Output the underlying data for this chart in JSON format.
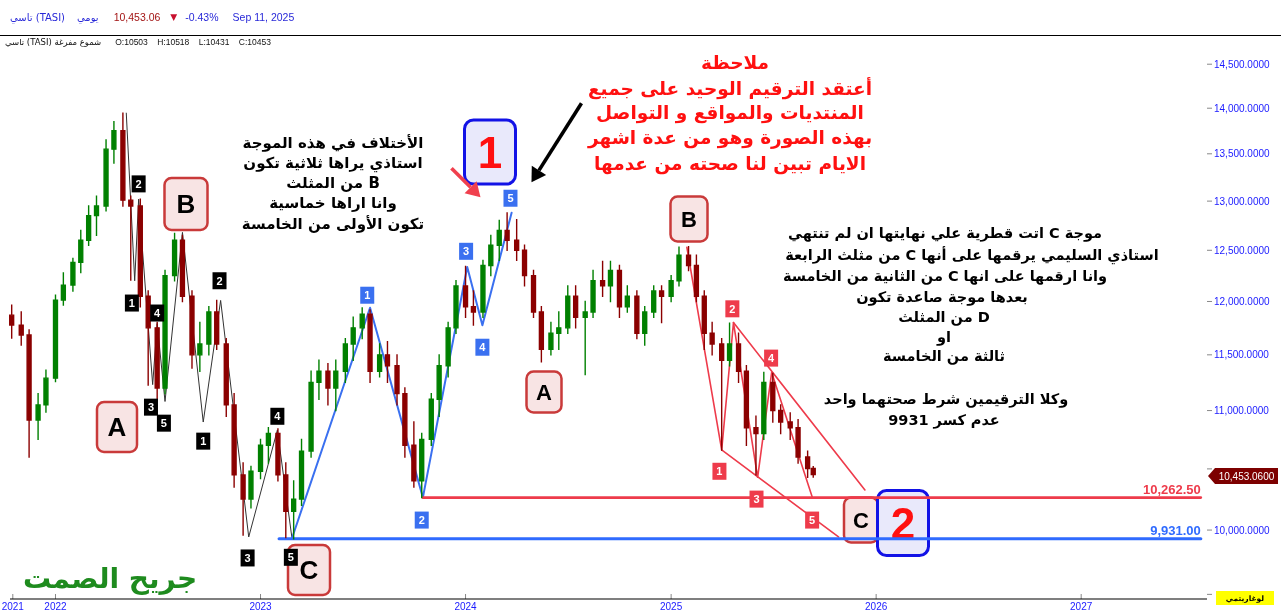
{
  "chart_data": {
    "type": "candlestick",
    "title": "تاسي (TASI)",
    "subtitle": "يومي",
    "x": [
      "2021-10-15",
      "2021-11-01",
      "2021-11-15",
      "2021-12-01",
      "2021-12-15",
      "2022-01-01",
      "2022-01-15",
      "2022-02-01",
      "2022-02-15",
      "2022-03-01",
      "2022-03-15",
      "2022-04-01",
      "2022-04-15",
      "2022-05-01",
      "2022-05-15",
      "2022-06-01",
      "2022-06-15",
      "2022-07-01",
      "2022-07-15",
      "2022-08-01",
      "2022-08-15",
      "2022-09-01",
      "2022-09-15",
      "2022-10-01",
      "2022-10-15",
      "2022-11-01",
      "2022-11-15",
      "2022-12-01",
      "2022-12-15",
      "2023-01-01",
      "2023-01-15",
      "2023-02-01",
      "2023-02-15",
      "2023-03-01",
      "2023-03-15",
      "2023-04-01",
      "2023-04-15",
      "2023-05-01",
      "2023-05-15",
      "2023-06-01",
      "2023-06-15",
      "2023-07-01",
      "2023-07-15",
      "2023-08-01",
      "2023-08-15",
      "2023-09-01",
      "2023-09-15",
      "2023-10-01",
      "2023-10-15",
      "2023-11-01",
      "2023-11-15",
      "2023-12-01",
      "2023-12-15",
      "2024-01-01",
      "2024-01-15",
      "2024-02-01",
      "2024-02-15",
      "2024-03-01",
      "2024-03-15",
      "2024-04-01",
      "2024-04-15",
      "2024-05-01",
      "2024-05-15",
      "2024-06-01",
      "2024-06-15",
      "2024-07-01",
      "2024-07-15",
      "2024-08-01",
      "2024-08-15",
      "2024-09-01",
      "2024-09-15",
      "2024-10-01",
      "2024-10-15",
      "2024-11-01",
      "2024-11-15",
      "2024-12-01",
      "2024-12-15",
      "2025-01-01",
      "2025-01-15",
      "2025-02-01",
      "2025-02-15",
      "2025-03-01",
      "2025-03-15",
      "2025-04-01",
      "2025-04-15",
      "2025-05-01",
      "2025-05-15",
      "2025-06-01",
      "2025-06-15",
      "2025-07-01",
      "2025-07-15",
      "2025-08-01",
      "2025-08-15",
      "2025-09-01",
      "2025-09-11"
    ],
    "ohlc": [
      [
        11870,
        11965,
        11655,
        11776
      ],
      [
        11776,
        11900,
        11590,
        11684
      ],
      [
        11684,
        11730,
        10600,
        10917
      ],
      [
        10917,
        11150,
        10750,
        11050
      ],
      [
        11050,
        11360,
        10987,
        11288
      ],
      [
        11288,
        12060,
        11257,
        12013
      ],
      [
        12013,
        12275,
        11965,
        12158
      ],
      [
        12158,
        12420,
        12100,
        12380
      ],
      [
        12380,
        12700,
        12280,
        12600
      ],
      [
        12600,
        12950,
        12550,
        12850
      ],
      [
        12850,
        13050,
        12650,
        12950
      ],
      [
        12950,
        13650,
        12900,
        13550
      ],
      [
        13550,
        13850,
        13400,
        13750
      ],
      [
        13750,
        13945,
        12950,
        13010
      ],
      [
        13010,
        13050,
        12207,
        12950
      ],
      [
        12950,
        13020,
        11950,
        12050
      ],
      [
        12050,
        12100,
        11226,
        11750
      ],
      [
        11750,
        11800,
        11090,
        11200
      ],
      [
        11200,
        12300,
        11150,
        12250
      ],
      [
        12250,
        12670,
        12200,
        12600
      ],
      [
        12600,
        12650,
        12000,
        12050
      ],
      [
        12050,
        12100,
        11380,
        11500
      ],
      [
        11500,
        11800,
        11350,
        11600
      ],
      [
        11600,
        11950,
        11500,
        11900
      ],
      [
        11900,
        12010,
        11550,
        11600
      ],
      [
        11600,
        11650,
        10950,
        11050
      ],
      [
        11050,
        11150,
        10350,
        10450
      ],
      [
        10450,
        10550,
        9960,
        10250
      ],
      [
        10250,
        10520,
        10180,
        10480
      ],
      [
        10480,
        10750,
        10420,
        10700
      ],
      [
        10700,
        10850,
        10550,
        10800
      ],
      [
        10800,
        10840,
        10400,
        10450
      ],
      [
        10450,
        10550,
        9940,
        10150
      ],
      [
        10150,
        10400,
        9931,
        10250
      ],
      [
        10250,
        10750,
        10200,
        10650
      ],
      [
        10650,
        11350,
        10600,
        11250
      ],
      [
        11250,
        11450,
        11100,
        11350
      ],
      [
        11350,
        11420,
        11050,
        11200
      ],
      [
        11200,
        11450,
        11000,
        11350
      ],
      [
        11350,
        11650,
        11250,
        11600
      ],
      [
        11600,
        11850,
        11450,
        11750
      ],
      [
        11750,
        11938,
        11650,
        11880
      ],
      [
        11880,
        11920,
        11250,
        11350
      ],
      [
        11350,
        11600,
        11300,
        11500
      ],
      [
        11500,
        11620,
        11250,
        11400
      ],
      [
        11400,
        11500,
        11050,
        11150
      ],
      [
        11150,
        11200,
        10600,
        10700
      ],
      [
        10700,
        10900,
        10350,
        10400
      ],
      [
        10400,
        10800,
        10262.5,
        10750
      ],
      [
        10750,
        11150,
        10700,
        11100
      ],
      [
        11100,
        11500,
        10950,
        11400
      ],
      [
        11400,
        11800,
        11300,
        11750
      ],
      [
        11750,
        12200,
        11700,
        12150
      ],
      [
        12150,
        12341,
        11850,
        11950
      ],
      [
        11950,
        12100,
        11776,
        11900
      ],
      [
        11900,
        12400,
        11850,
        12350
      ],
      [
        12350,
        12650,
        12250,
        12550
      ],
      [
        12550,
        12800,
        12400,
        12700
      ],
      [
        12700,
        12879,
        12500,
        12600
      ],
      [
        12600,
        12810,
        12400,
        12500
      ],
      [
        12500,
        12550,
        12150,
        12250
      ],
      [
        12250,
        12300,
        11850,
        11900
      ],
      [
        11900,
        11950,
        11436,
        11550
      ],
      [
        11550,
        11800,
        11500,
        11700
      ],
      [
        11700,
        11900,
        11550,
        11750
      ],
      [
        11750,
        12150,
        11700,
        12050
      ],
      [
        12050,
        12150,
        11750,
        11850
      ],
      [
        11850,
        12000,
        11320,
        11900
      ],
      [
        11900,
        12300,
        11850,
        12200
      ],
      [
        12200,
        12390,
        12050,
        12150
      ],
      [
        12150,
        12390,
        12000,
        12300
      ],
      [
        12300,
        12350,
        11850,
        11950
      ],
      [
        11950,
        12150,
        11900,
        12050
      ],
      [
        12050,
        12100,
        11650,
        11700
      ],
      [
        11700,
        11950,
        11590,
        11900
      ],
      [
        11900,
        12150,
        11850,
        12100
      ],
      [
        12100,
        12150,
        11800,
        12050
      ],
      [
        12050,
        12250,
        12000,
        12200
      ],
      [
        12200,
        12530,
        12150,
        12450
      ],
      [
        12450,
        12536,
        12300,
        12350
      ],
      [
        12350,
        12450,
        12000,
        12050
      ],
      [
        12050,
        12100,
        11550,
        11700
      ],
      [
        11700,
        11800,
        11500,
        11600
      ],
      [
        11600,
        11650,
        10658,
        11450
      ],
      [
        11450,
        11795,
        11400,
        11600
      ],
      [
        11600,
        11700,
        11250,
        11350
      ],
      [
        11350,
        11400,
        10700,
        10850
      ],
      [
        10850,
        10950,
        10450,
        10800
      ],
      [
        10800,
        11340,
        10750,
        11250
      ],
      [
        11250,
        11330,
        10900,
        11000
      ],
      [
        11000,
        11050,
        10800,
        10900
      ],
      [
        10900,
        10980,
        10750,
        10850
      ],
      [
        10850,
        10920,
        10550,
        10600
      ],
      [
        10600,
        10650,
        10430,
        10503
      ],
      [
        10503,
        10518,
        10431,
        10453
      ]
    ],
    "colors": [
      "#8b0000",
      "#8b0000",
      "#8b0000",
      "#008000",
      "#008000",
      "#008000",
      "#008000",
      "#008000",
      "#008000",
      "#008000",
      "#008000",
      "#008000",
      "#008000",
      "#8b0000",
      "#8b0000",
      "#8b0000",
      "#8b0000",
      "#8b0000",
      "#008000",
      "#008000",
      "#8b0000",
      "#8b0000",
      "#008000",
      "#008000",
      "#8b0000",
      "#8b0000",
      "#8b0000",
      "#8b0000",
      "#008000",
      "#008000",
      "#008000",
      "#8b0000",
      "#8b0000",
      "#008000",
      "#008000",
      "#008000",
      "#008000",
      "#8b0000",
      "#008000",
      "#008000",
      "#008000",
      "#008000",
      "#8b0000",
      "#008000",
      "#8b0000",
      "#8b0000",
      "#8b0000",
      "#8b0000",
      "#008000",
      "#008000",
      "#008000",
      "#008000",
      "#008000",
      "#8b0000",
      "#8b0000",
      "#008000",
      "#008000",
      "#008000",
      "#8b0000",
      "#8b0000",
      "#8b0000",
      "#8b0000",
      "#8b0000",
      "#008000",
      "#008000",
      "#008000",
      "#8b0000",
      "#008000",
      "#008000",
      "#8b0000",
      "#008000",
      "#8b0000",
      "#008000",
      "#8b0000",
      "#008000",
      "#008000",
      "#8b0000",
      "#008000",
      "#008000",
      "#8b0000",
      "#8b0000",
      "#8b0000",
      "#8b0000",
      "#8b0000",
      "#008000",
      "#8b0000",
      "#8b0000",
      "#8b0000",
      "#008000",
      "#8b0000",
      "#8b0000",
      "#8b0000",
      "#8b0000",
      "#8b0000",
      "#8b0000"
    ],
    "series": [
      {
        "type": "line",
        "x": [
          "2022-05-07",
          "2022-05-22",
          "2022-05-29",
          "2022-06-23",
          "2022-07-01",
          "2022-07-15",
          "2022-08-15",
          "2022-09-21",
          "2022-10-22",
          "2022-12-11",
          "2023-01-31",
          "2023-02-26"
        ],
        "values": [
          13945,
          12200,
          13020,
          11230,
          11790,
          11080,
          12680,
          10900,
          12010,
          9945,
          10830,
          9935
        ],
        "color": "#333333"
      },
      {
        "type": "line",
        "x": [
          "2023-02-26",
          "2023-07-15",
          "2023-10-17",
          "2024-01-04",
          "2024-01-31",
          "2024-03-23"
        ],
        "values": [
          9935,
          11940,
          10262.5,
          12335,
          11775,
          12880
        ],
        "color": "#3a70f0"
      },
      {
        "type": "line",
        "x": [
          "2025-01-29",
          "2025-04-01",
          "2025-04-22",
          "2025-06-04",
          "2025-06-29",
          "2025-09-09"
        ],
        "values": [
          12530,
          10660,
          11800,
          10430,
          11340,
          10270
        ],
        "color": "#ee3b4b"
      },
      {
        "type": "line",
        "x": [
          "2025-04-01",
          "2025-10-26"
        ],
        "values": [
          10660,
          9945
        ],
        "color": "#ee3b4b"
      },
      {
        "type": "line",
        "x": [
          "2025-04-22",
          "2025-12-12"
        ],
        "values": [
          11800,
          10325
        ],
        "color": "#ee3b4b"
      },
      {
        "type": "line",
        "x": [
          "2023-10-17",
          "2027-08-02"
        ],
        "values": [
          10262.5,
          10262.5
        ],
        "color": "#ee3b4b"
      },
      {
        "type": "line",
        "x": [
          "2023-02-03",
          "2027-08-02"
        ],
        "values": [
          9931,
          9931
        ],
        "color": "#2f6bff"
      }
    ],
    "xlim": [
      "2021-10-12",
      "2027-08-13"
    ],
    "xticks": [
      {
        "value": "2021-10-17",
        "label": "2021"
      },
      {
        "value": "2022-01-01",
        "label": "2022"
      },
      {
        "value": "2023-01-01",
        "label": "2023"
      },
      {
        "value": "2024-01-01",
        "label": "2024"
      },
      {
        "value": "2025-01-01",
        "label": "2025"
      },
      {
        "value": "2026-01-01",
        "label": "2026"
      },
      {
        "value": "2027-01-01",
        "label": "2027"
      }
    ],
    "ylim": [
      9465,
      14830
    ],
    "yticks": [
      {
        "value": 9500,
        "label": null
      },
      {
        "value": 10000,
        "label": "10,000.0000"
      },
      {
        "value": 10500,
        "label": null
      },
      {
        "value": 11000,
        "label": "11,000.0000"
      },
      {
        "value": 11500,
        "label": "11,500.0000"
      },
      {
        "value": 12000,
        "label": "12,000.0000"
      },
      {
        "value": 12500,
        "label": "12,500.0000"
      },
      {
        "value": 13000,
        "label": "13,000.0000"
      },
      {
        "value": 13500,
        "label": "13,500.0000"
      },
      {
        "value": 14000,
        "label": "14,000.0000"
      },
      {
        "value": 14500,
        "label": "14,500.0000"
      }
    ],
    "log": true,
    "annotations": [
      "10,453.06",
      "▼",
      "-0.43%",
      "Sep 11, 2025",
      "تاسي (TASI) شموع مفرغة",
      "O:10503 H:10518 L:10431 C:10453",
      "الأختلاف في هذه الموجة",
      "استاذي يراها ثلاثية تكون",
      "B من المثلث",
      "وانا اراها خماسية",
      "تكون الأولى من الخامسة",
      "ملاحظة",
      "أعتقد الترقيم الوحيد على جميع",
      "المنتديات والمواقع و التواصل",
      "بهذه الصورة وهو من عدة اشهر",
      "الايام تبين لنا صحته من عدمها",
      "موجة C اتت قطرية علي نهايتها ان لم تنتهي",
      "استاذي السليمي يرقمها على أنها C من مثلث الرابعة",
      "وانا ارقمها على انها C من الثانية من الخامسة",
      "بعدها موجة صاعدة تكون",
      "D من المثلث",
      "او",
      "ثالثة من الخامسة",
      "وكلا الترقيمين شرط صحتهما واحد",
      "عدم كسر 9931",
      "جريح الصمت",
      "لوغاريتمي",
      {
        "text": "2",
        "x": "2022-05-29",
        "y": 13180
      },
      {
        "text": "1",
        "x": "2022-05-17",
        "y": 11985
      },
      {
        "text": "4",
        "x": "2022-07-01",
        "y": 11890
      },
      {
        "text": "3",
        "x": "2022-06-20",
        "y": 11030
      },
      {
        "text": "5",
        "x": "2022-07-13",
        "y": 10890
      },
      {
        "text": "2",
        "x": "2022-10-20",
        "y": 12200
      },
      {
        "text": "1",
        "x": "2022-09-21",
        "y": 10735
      },
      {
        "text": "4",
        "x": "2023-01-31",
        "y": 10950
      },
      {
        "text": "3",
        "x": "2022-12-09",
        "y": 9780
      },
      {
        "text": "5",
        "x": "2023-02-24",
        "y": 9785
      },
      {
        "text": "1",
        "x": "2023-07-10",
        "y": 12060
      },
      {
        "text": "2",
        "x": "2023-10-15",
        "y": 10080
      },
      {
        "text": "3",
        "x": "2024-01-02",
        "y": 12490
      },
      {
        "text": "4",
        "x": "2024-01-31",
        "y": 11570
      },
      {
        "text": "5",
        "x": "2024-03-21",
        "y": 13030
      },
      {
        "text": "1",
        "x": "2025-03-28",
        "y": 10480
      },
      {
        "text": "2",
        "x": "2025-04-20",
        "y": 11930
      },
      {
        "text": "3",
        "x": "2025-06-02",
        "y": 10250
      },
      {
        "text": "4",
        "x": "2025-06-28",
        "y": 11470
      },
      {
        "text": "5",
        "x": "2025-09-09",
        "y": 10080
      },
      "A",
      "B",
      "C",
      "1",
      "A",
      "B",
      "C",
      "2",
      {
        "text": "10,262.50",
        "x": "2027-08-02",
        "y": 10262.5
      },
      {
        "text": "9,931.00",
        "x": "2027-08-02",
        "y": 9931
      },
      "10,453.0600"
    ]
  }
}
